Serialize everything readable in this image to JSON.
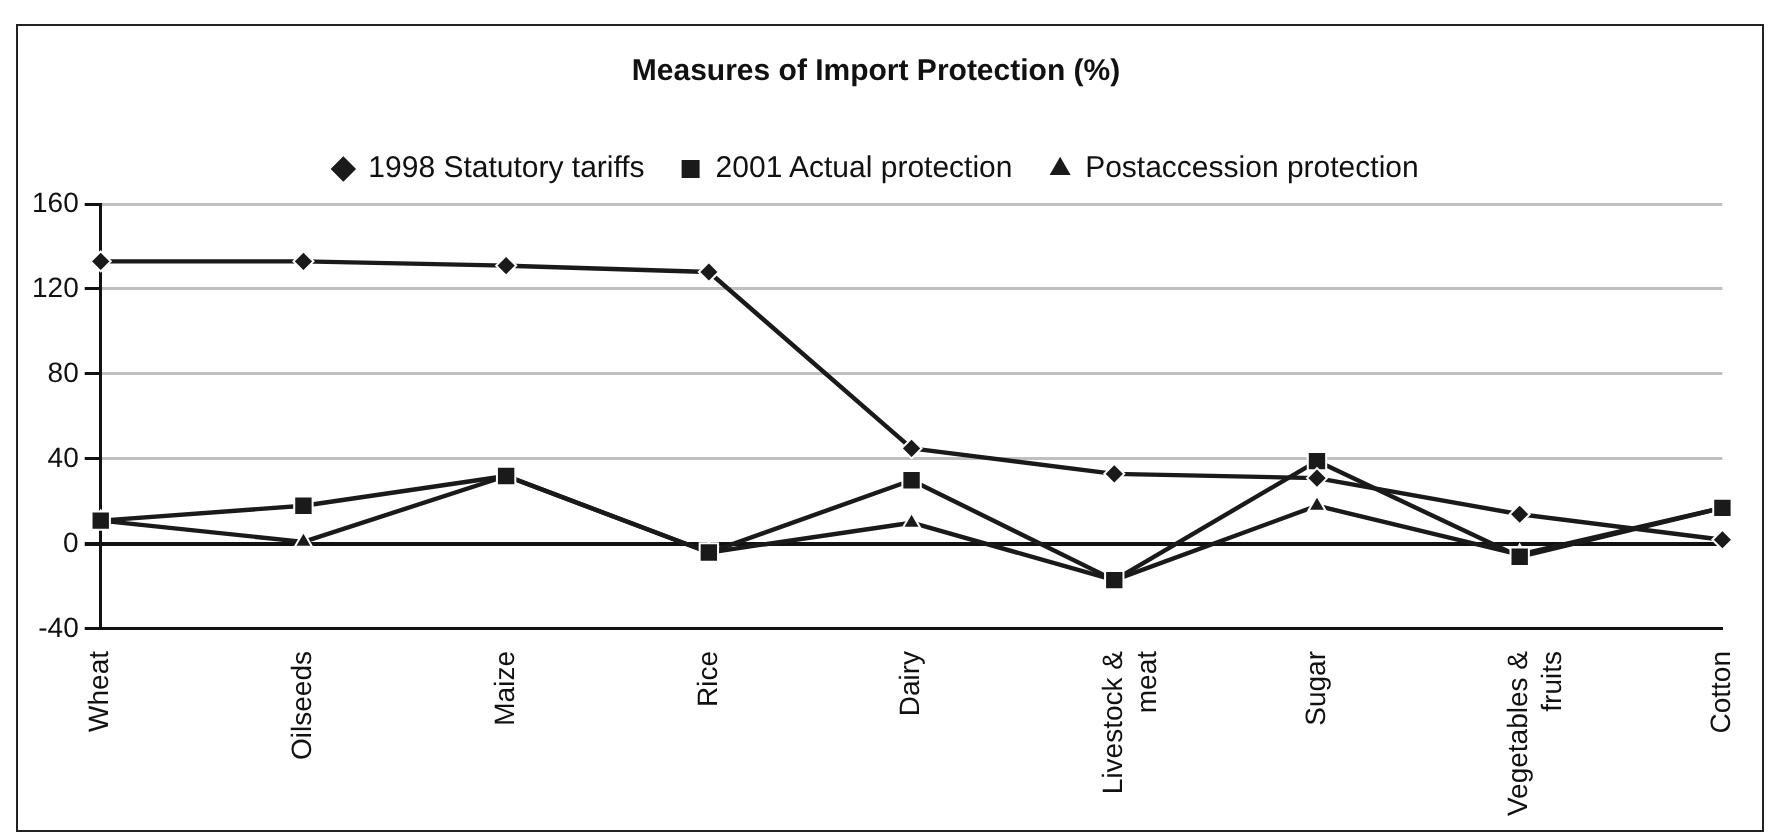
{
  "chart_data": {
    "type": "line",
    "title": "Measures of Import Protection (%)",
    "categories": [
      "Wheat",
      "Oilseeds",
      "Maize",
      "Rice",
      "Dairy",
      "Livestock & meat",
      "Sugar",
      "Vegetables & fruits",
      "Cotton"
    ],
    "series": [
      {
        "name": "1998 Statutory tariffs",
        "color": "#1a1a1a",
        "marker": "diamond",
        "values": [
          133,
          133,
          131,
          128,
          45,
          33,
          31,
          14,
          2
        ]
      },
      {
        "name": "2001 Actual protection",
        "color": "#1a1a1a",
        "marker": "square",
        "values": [
          11,
          18,
          32,
          -4,
          30,
          -17,
          39,
          -6,
          17
        ]
      },
      {
        "name": "Postaccession protection",
        "color": "#1a1a1a",
        "marker": "triangle",
        "values": [
          11,
          1,
          32,
          -4,
          10,
          -17,
          18,
          -5,
          17
        ]
      }
    ],
    "ylim": [
      -40,
      160
    ],
    "yticks": [
      -40,
      0,
      40,
      80,
      120,
      160
    ],
    "grid": "y",
    "legend": "top",
    "line_style": "solid"
  }
}
